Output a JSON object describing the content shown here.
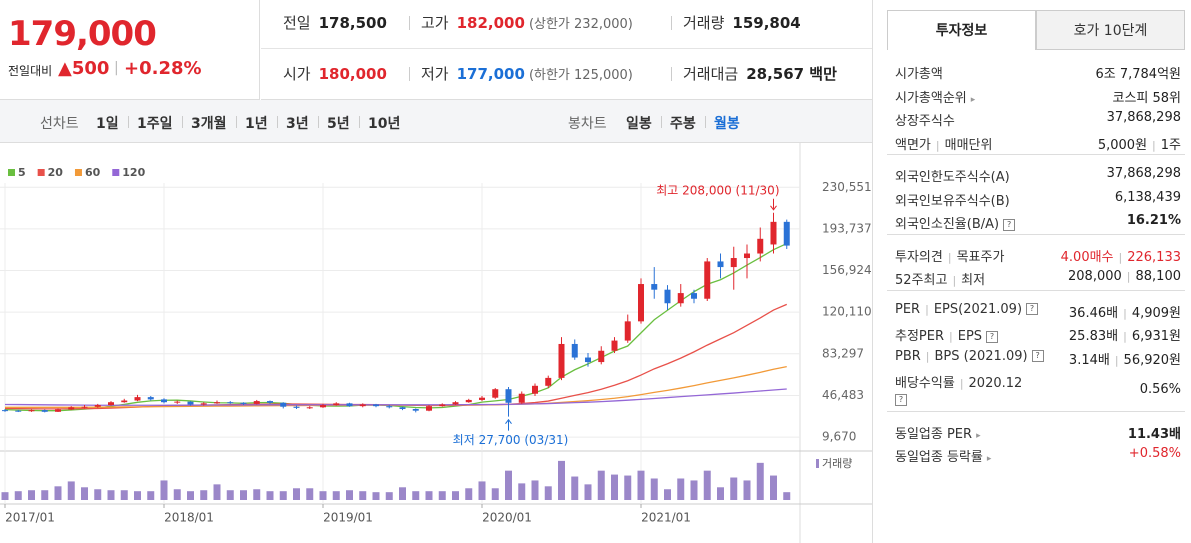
{
  "header": {
    "price": "179,000",
    "change_label": "전일대비",
    "change": "▲500",
    "change_pct": "+0.28%",
    "info": [
      {
        "label": "전일",
        "value": "178,500"
      },
      {
        "label": "고가",
        "value": "182,000",
        "extra": "(상한가 232,000)",
        "color": "#e0262d"
      },
      {
        "label": "거래량",
        "value": "159,804"
      },
      {
        "label": "시가",
        "value": "180,000",
        "color": "#e0262d"
      },
      {
        "label": "저가",
        "value": "177,000",
        "extra": "(하한가 125,000)",
        "color": "#1b6fd6"
      },
      {
        "label": "거래대금",
        "value": "28,567 백만"
      }
    ]
  },
  "tabs": {
    "line_label": "선차트",
    "line": [
      "1일",
      "1주일",
      "3개월",
      "1년",
      "3년",
      "5년",
      "10년"
    ],
    "candle_label": "봉차트",
    "candle": [
      "일봉",
      "주봉",
      "월봉"
    ],
    "selected": 2
  },
  "chart_data": {
    "type": "candlestick",
    "categories": [
      "2017/01",
      null,
      null,
      null,
      null,
      null,
      null,
      null,
      null,
      null,
      null,
      null,
      "2018/01",
      null,
      null,
      null,
      null,
      null,
      null,
      null,
      null,
      null,
      null,
      null,
      "2019/01",
      null,
      null,
      null,
      null,
      null,
      null,
      null,
      null,
      null,
      null,
      null,
      "2020/01",
      null,
      null,
      null,
      null,
      null,
      null,
      null,
      null,
      null,
      null,
      null,
      "2021/01",
      null,
      null,
      null,
      null,
      null,
      null,
      null,
      null,
      null,
      null,
      null
    ],
    "open": [
      33500,
      33000,
      32500,
      33500,
      32000,
      34000,
      36000,
      36500,
      38000,
      40500,
      42000,
      45000,
      43000,
      40500,
      41000,
      38500,
      39500,
      40500,
      40000,
      39000,
      41500,
      40000,
      36500,
      35500,
      36000,
      38000,
      39500,
      37000,
      38500,
      37000,
      36000,
      34500,
      33000,
      37000,
      38500,
      40500,
      42500,
      44500,
      52000,
      40000,
      48000,
      55000,
      62000,
      92000,
      80000,
      76000,
      86000,
      95000,
      112000,
      145000,
      140000,
      128000,
      137000,
      132000,
      165000,
      160000,
      168000,
      172000,
      180000,
      200000
    ],
    "high": [
      34500,
      33800,
      34200,
      34000,
      35000,
      37000,
      38000,
      39000,
      41500,
      43500,
      47000,
      46000,
      44000,
      42000,
      41500,
      40500,
      42000,
      41500,
      40500,
      42500,
      42000,
      40500,
      37500,
      37000,
      39000,
      40500,
      40000,
      39500,
      39000,
      38000,
      36500,
      35000,
      38000,
      39500,
      41500,
      43500,
      46000,
      53000,
      54000,
      50000,
      57000,
      64000,
      98000,
      96000,
      84000,
      90000,
      98000,
      118000,
      150000,
      160000,
      144000,
      145000,
      140000,
      168000,
      172000,
      178000,
      180000,
      195000,
      208000,
      202000
    ],
    "low": [
      32000,
      31800,
      32000,
      31500,
      31800,
      33500,
      35000,
      35500,
      37500,
      40000,
      41500,
      42000,
      39500,
      39000,
      37500,
      37500,
      39000,
      39000,
      38000,
      38500,
      39000,
      35000,
      34500,
      34500,
      35500,
      37500,
      36500,
      36000,
      36000,
      35000,
      33500,
      31500,
      32500,
      36500,
      38000,
      40000,
      41500,
      43500,
      27700,
      39000,
      46000,
      53000,
      60000,
      78000,
      72000,
      74000,
      84000,
      93000,
      110000,
      132000,
      122000,
      125000,
      128000,
      130000,
      150000,
      140000,
      150000,
      165000,
      172000,
      176000
    ],
    "close": [
      33000,
      32500,
      33500,
      32000,
      34000,
      36000,
      36500,
      38000,
      40500,
      42000,
      45000,
      43000,
      40500,
      41000,
      38500,
      39500,
      40500,
      40000,
      39000,
      41500,
      40000,
      36500,
      35500,
      36000,
      38000,
      39500,
      37000,
      38500,
      37000,
      36000,
      34500,
      33000,
      37000,
      38500,
      40500,
      42500,
      44500,
      52000,
      40000,
      48000,
      55000,
      62000,
      92000,
      80000,
      76000,
      86000,
      95000,
      112000,
      145000,
      140000,
      128000,
      137000,
      132000,
      165000,
      160000,
      168000,
      172000,
      185000,
      200000,
      179000
    ],
    "up_color": "#e0262d",
    "down_color": "#2a72d6",
    "series": [
      {
        "name": "5",
        "color": "#6abf40",
        "values": [
          34000,
          33500,
          33200,
          33000,
          33000,
          33600,
          34400,
          35300,
          37000,
          38600,
          40400,
          41700,
          42200,
          42300,
          41600,
          40700,
          40000,
          39900,
          39500,
          40100,
          40200,
          39500,
          38500,
          37800,
          37200,
          37100,
          37200,
          37900,
          38000,
          37600,
          36600,
          35800,
          35500,
          35800,
          37100,
          38300,
          40600,
          41700,
          42900,
          45800,
          48900,
          53200,
          62600,
          69200,
          74400,
          80000,
          85800,
          90200,
          101800,
          113400,
          121800,
          130200,
          138200,
          144800,
          148800,
          154800,
          161800,
          168400,
          175400,
          180800
        ]
      },
      {
        "name": "20",
        "color": "#e8514a",
        "values": [
          35000,
          34800,
          34700,
          34600,
          34600,
          34700,
          34800,
          35000,
          35300,
          35700,
          36200,
          36700,
          37100,
          37500,
          37700,
          37900,
          38100,
          38300,
          38500,
          38700,
          38800,
          38900,
          38900,
          38800,
          38700,
          38600,
          38500,
          38400,
          38300,
          38100,
          37900,
          37700,
          37600,
          37600,
          37700,
          37900,
          38100,
          38300,
          38700,
          39300,
          40200,
          41500,
          44000,
          46500,
          49000,
          52000,
          55500,
          59500,
          64500,
          70000,
          74500,
          79500,
          85000,
          91000,
          96500,
          102000,
          108500,
          115000,
          122000,
          127000
        ]
      },
      {
        "name": "60",
        "color": "#f29a38",
        "values": [
          36000,
          36000,
          36000,
          36000,
          36000,
          36000,
          36000,
          36100,
          36200,
          36300,
          36400,
          36500,
          36600,
          36700,
          36800,
          36900,
          37000,
          37100,
          37200,
          37300,
          37400,
          37500,
          37500,
          37600,
          37700,
          37800,
          37800,
          37900,
          37900,
          37900,
          37900,
          37900,
          37900,
          37900,
          38000,
          38100,
          38200,
          38300,
          38500,
          38700,
          39000,
          39500,
          40300,
          41100,
          41900,
          42900,
          44000,
          45400,
          47200,
          49200,
          51000,
          53000,
          55200,
          57600,
          59800,
          62000,
          64400,
          66900,
          69600,
          72000
        ]
      },
      {
        "name": "120",
        "color": "#9467d6",
        "values": [
          38500,
          38400,
          38300,
          38200,
          38100,
          38000,
          37900,
          37800,
          37800,
          37800,
          37800,
          37800,
          37800,
          37850,
          37900,
          37950,
          38000,
          38050,
          38100,
          38150,
          38200,
          38200,
          38200,
          38200,
          38200,
          38200,
          38200,
          38200,
          38200,
          38200,
          38200,
          38200,
          38200,
          38250,
          38300,
          38350,
          38400,
          38500,
          38600,
          38800,
          39000,
          39300,
          39700,
          40100,
          40500,
          41000,
          41600,
          42300,
          43000,
          43800,
          44600,
          45400,
          46200,
          47000,
          47800,
          48600,
          49500,
          50400,
          51300,
          52200
        ]
      }
    ],
    "ylim": [
      0,
      260000
    ],
    "yticks": [
      {
        "value": 9670,
        "label": "9,670"
      },
      {
        "value": 46483,
        "label": "46,483"
      },
      {
        "value": 83297,
        "label": "83,297"
      },
      {
        "value": 120110,
        "label": "120,110"
      },
      {
        "value": 156924,
        "label": "156,924"
      },
      {
        "value": 193737,
        "label": "193,737"
      },
      {
        "value": 230551,
        "label": "230,551"
      }
    ],
    "grid": true,
    "annotations": [
      {
        "text": "최고 208,000 (11/30)",
        "index": 58,
        "value": 208000,
        "color": "#e0262d"
      },
      {
        "text": "최저 27,700 (03/31)",
        "index": 38,
        "value": 27700,
        "color": "#1b6fd6"
      }
    ],
    "volume": {
      "name": "거래량",
      "color": "#9b87c9",
      "ylim": [
        0,
        45
      ],
      "values": [
        8,
        9,
        10,
        10,
        14,
        19,
        13,
        11,
        10,
        10,
        9,
        9,
        20,
        11,
        9,
        10,
        16,
        10,
        10,
        11,
        9,
        9,
        12,
        12,
        9,
        9,
        10,
        9,
        8,
        8,
        13,
        9,
        9,
        9,
        9,
        12,
        19,
        12,
        30,
        17,
        20,
        14,
        40,
        24,
        16,
        30,
        26,
        25,
        30,
        22,
        11,
        22,
        20,
        30,
        13,
        23,
        20,
        38,
        25,
        8
      ]
    }
  },
  "side": {
    "tabs": [
      "투자정보",
      "호가 10단계"
    ],
    "groups": [
      [
        {
          "label": [
            "시가총액"
          ],
          "value": [
            "6조 7,784억원"
          ]
        },
        {
          "label": [
            "시가총액순위"
          ],
          "more": true,
          "value": [
            "코스피 58위"
          ]
        },
        {
          "label": [
            "상장주식수"
          ],
          "value": [
            "37,868,298"
          ]
        },
        {
          "label": [
            "액면가",
            "매매단위"
          ],
          "value": [
            "5,000원",
            "1주"
          ]
        }
      ],
      [
        {
          "label": [
            "외국인한도주식수(A)"
          ],
          "value": [
            "37,868,298"
          ]
        },
        {
          "label": [
            "외국인보유주식수(B)"
          ],
          "value": [
            "6,138,439"
          ]
        },
        {
          "label": [
            "외국인소진율(B/A)"
          ],
          "help": true,
          "value": [
            "16.21%"
          ],
          "bold": true
        }
      ],
      [
        {
          "label": [
            "투자의견",
            "목표주가"
          ],
          "value": [
            "4.00매수",
            "226,133"
          ],
          "color": "#e0262d"
        },
        {
          "label": [
            "52주최고",
            "최저"
          ],
          "value": [
            "208,000",
            "88,100"
          ]
        }
      ],
      [
        {
          "label": [
            "PER",
            "EPS(2021.09)"
          ],
          "help": true,
          "value": [
            "36.46배",
            "4,909원"
          ]
        },
        {
          "label": [
            "추정PER",
            "EPS"
          ],
          "help": true,
          "value": [
            "25.83배",
            "6,931원"
          ]
        },
        {
          "label": [
            "PBR",
            "BPS (2021.09)"
          ],
          "help": true,
          "value": [
            "3.14배",
            "56,920원"
          ]
        },
        {
          "label": [
            "배당수익률",
            "2020.12"
          ],
          "help": true,
          "helpBelow": true,
          "value": [
            "0.56%"
          ]
        }
      ],
      [
        {
          "label": [
            "동일업종 PER"
          ],
          "more": true,
          "value": [
            "11.43배"
          ],
          "bold": true
        },
        {
          "label": [
            "동일업종 등락률"
          ],
          "more": true,
          "value": [
            "+0.58%"
          ],
          "color": "#e0262d"
        }
      ]
    ]
  }
}
